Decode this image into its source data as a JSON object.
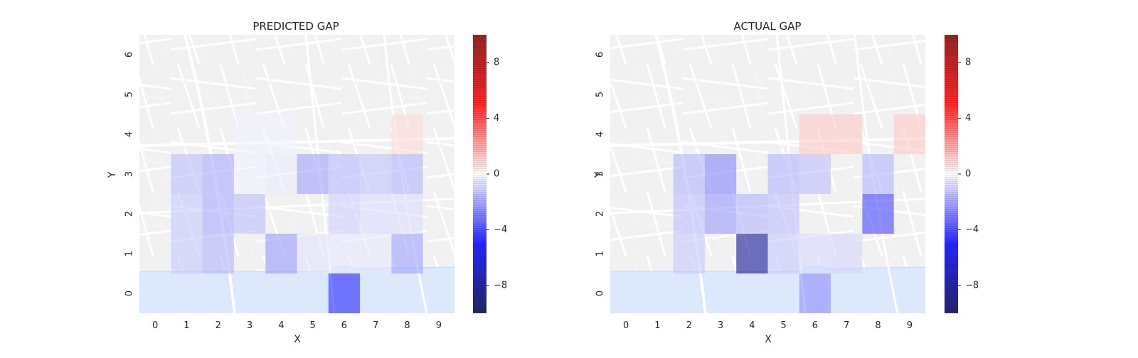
{
  "chart_data": [
    {
      "type": "heatmap",
      "title": "PREDICTED GAP",
      "xlabel": "X",
      "ylabel": "Y",
      "x_ticks": [
        "0",
        "1",
        "2",
        "3",
        "4",
        "5",
        "6",
        "7",
        "8",
        "9"
      ],
      "y_ticks": [
        "0",
        "1",
        "2",
        "3",
        "4",
        "5",
        "6"
      ],
      "xlim": [
        -0.5,
        9.5
      ],
      "ylim": [
        -0.5,
        6.5
      ],
      "cells": [
        {
          "x": 1,
          "y": 1,
          "v": -1.2
        },
        {
          "x": 1,
          "y": 2,
          "v": -1.2
        },
        {
          "x": 1,
          "y": 3,
          "v": -1.4
        },
        {
          "x": 2,
          "y": 1,
          "v": -1.6
        },
        {
          "x": 2,
          "y": 2,
          "v": -1.8
        },
        {
          "x": 2,
          "y": 3,
          "v": -1.8
        },
        {
          "x": 3,
          "y": 2,
          "v": -1.4
        },
        {
          "x": 3,
          "y": 3,
          "v": -0.3
        },
        {
          "x": 3,
          "y": 4,
          "v": -0.3
        },
        {
          "x": 4,
          "y": 1,
          "v": -2.2
        },
        {
          "x": 4,
          "y": 3,
          "v": -0.4
        },
        {
          "x": 4,
          "y": 4,
          "v": -0.3
        },
        {
          "x": 5,
          "y": 1,
          "v": -0.6
        },
        {
          "x": 5,
          "y": 3,
          "v": -2.0
        },
        {
          "x": 6,
          "y": 0,
          "v": -4.6
        },
        {
          "x": 6,
          "y": 1,
          "v": -0.5
        },
        {
          "x": 6,
          "y": 2,
          "v": -1.0
        },
        {
          "x": 6,
          "y": 3,
          "v": -1.5
        },
        {
          "x": 7,
          "y": 1,
          "v": -0.5
        },
        {
          "x": 7,
          "y": 2,
          "v": -0.7
        },
        {
          "x": 7,
          "y": 3,
          "v": -1.3
        },
        {
          "x": 8,
          "y": 1,
          "v": -2.0
        },
        {
          "x": 8,
          "y": 2,
          "v": -0.7
        },
        {
          "x": 8,
          "y": 3,
          "v": -1.6
        },
        {
          "x": 8,
          "y": 4,
          "v": 0.8
        }
      ],
      "colorbar": {
        "vmin": -10,
        "vmax": 10,
        "ticks": [
          "8",
          "4",
          "0",
          "−4",
          "−8"
        ],
        "tick_values": [
          8,
          4,
          0,
          -4,
          -8
        ],
        "cmap": "seismic"
      }
    },
    {
      "type": "heatmap",
      "title": "ACTUAL GAP",
      "xlabel": "X",
      "ylabel": "Y",
      "x_ticks": [
        "0",
        "1",
        "2",
        "3",
        "4",
        "5",
        "6",
        "7",
        "8",
        "9"
      ],
      "y_ticks": [
        "0",
        "1",
        "2",
        "3",
        "4",
        "5",
        "6"
      ],
      "xlim": [
        -0.5,
        9.5
      ],
      "ylim": [
        -0.5,
        6.5
      ],
      "cells": [
        {
          "x": 2,
          "y": 1,
          "v": -1.2
        },
        {
          "x": 2,
          "y": 2,
          "v": -1.4
        },
        {
          "x": 2,
          "y": 3,
          "v": -1.6
        },
        {
          "x": 3,
          "y": 2,
          "v": -2.2
        },
        {
          "x": 3,
          "y": 3,
          "v": -2.6
        },
        {
          "x": 4,
          "y": 1,
          "v": -8.0
        },
        {
          "x": 4,
          "y": 2,
          "v": -1.6
        },
        {
          "x": 5,
          "y": 1,
          "v": -1.2
        },
        {
          "x": 5,
          "y": 2,
          "v": -1.4
        },
        {
          "x": 5,
          "y": 3,
          "v": -1.6
        },
        {
          "x": 6,
          "y": 0,
          "v": -2.4
        },
        {
          "x": 6,
          "y": 1,
          "v": -0.8
        },
        {
          "x": 6,
          "y": 3,
          "v": -1.4
        },
        {
          "x": 6,
          "y": 4,
          "v": 1.2
        },
        {
          "x": 7,
          "y": 1,
          "v": -0.9
        },
        {
          "x": 7,
          "y": 4,
          "v": 1.2
        },
        {
          "x": 8,
          "y": 2,
          "v": -4.0
        },
        {
          "x": 8,
          "y": 3,
          "v": -1.6
        },
        {
          "x": 9,
          "y": 4,
          "v": 1.2
        }
      ],
      "colorbar": {
        "vmin": -10,
        "vmax": 10,
        "ticks": [
          "8",
          "4",
          "0",
          "−4",
          "−8"
        ],
        "tick_values": [
          8,
          4,
          0,
          -4,
          -8
        ],
        "cmap": "seismic"
      }
    }
  ]
}
